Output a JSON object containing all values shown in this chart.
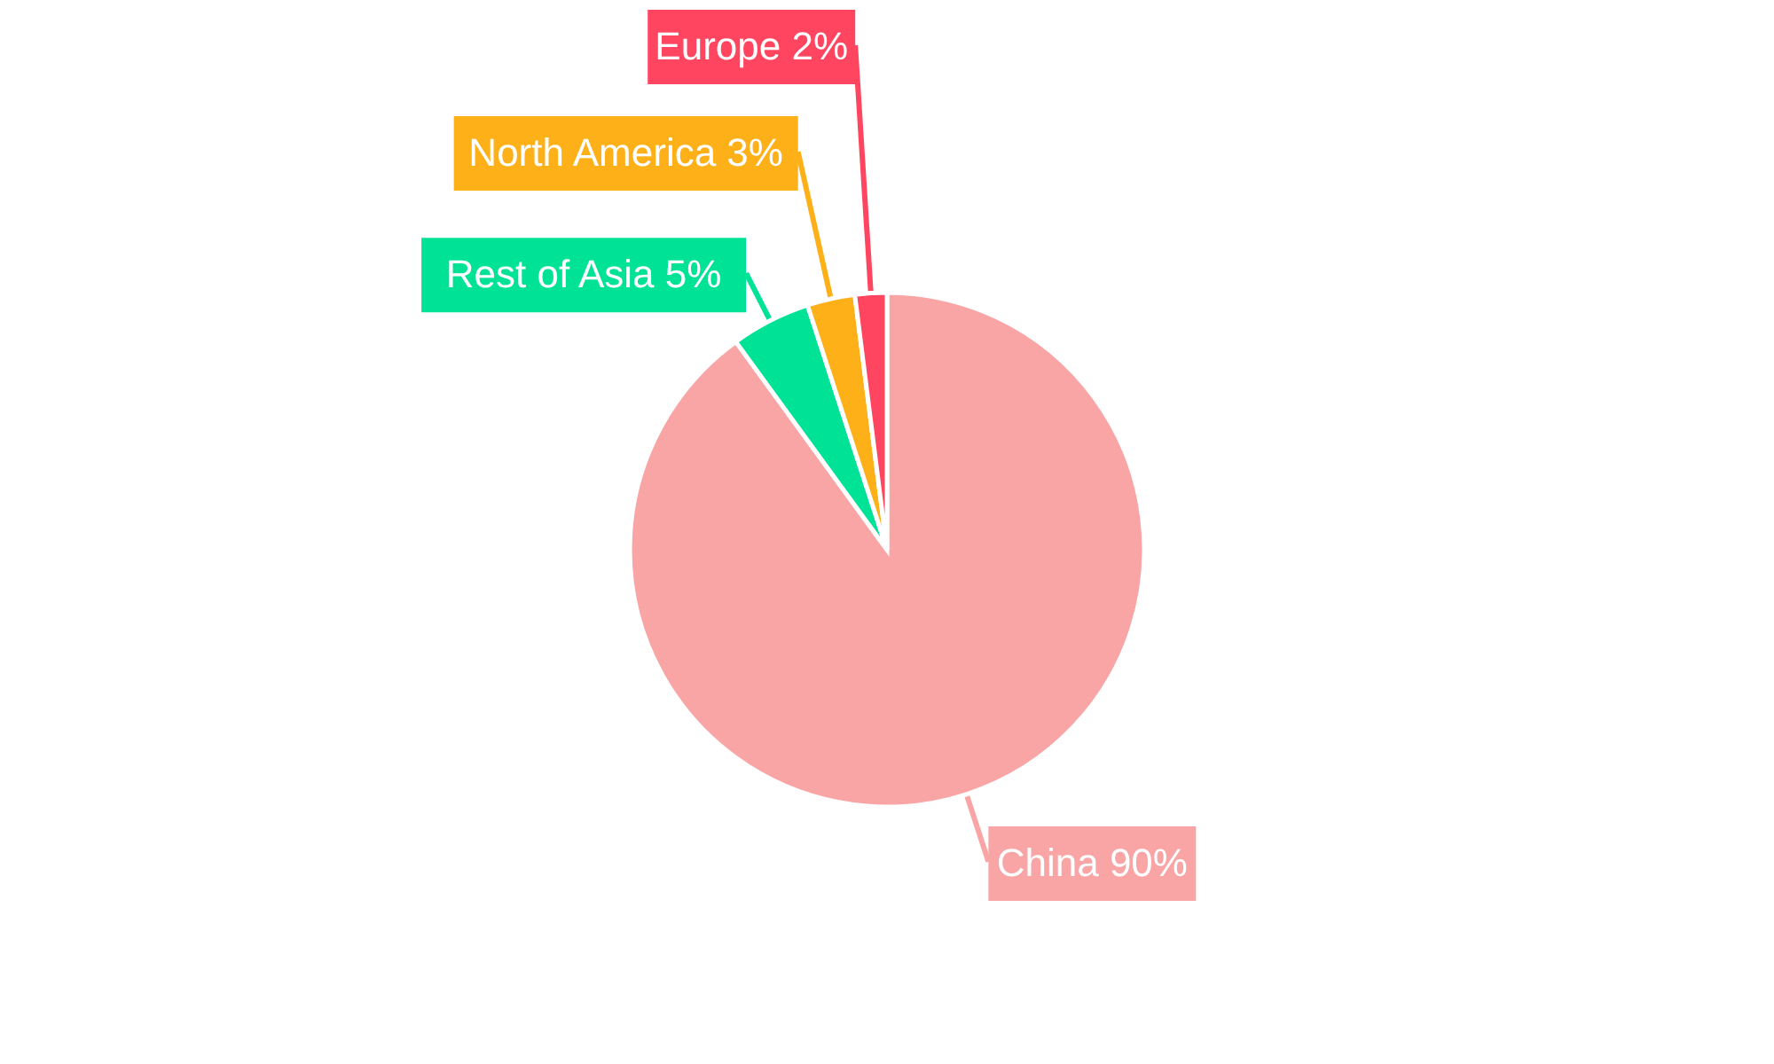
{
  "chart_data": {
    "type": "pie",
    "categories": [
      "China",
      "Rest of Asia",
      "North America",
      "Europe"
    ],
    "values": [
      90,
      5,
      3,
      2
    ],
    "value_labels": [
      "90%",
      "5%",
      "3%",
      "2%"
    ],
    "colors": [
      "#f9a5a5",
      "#00e396",
      "#feb019",
      "#ff4560"
    ]
  }
}
